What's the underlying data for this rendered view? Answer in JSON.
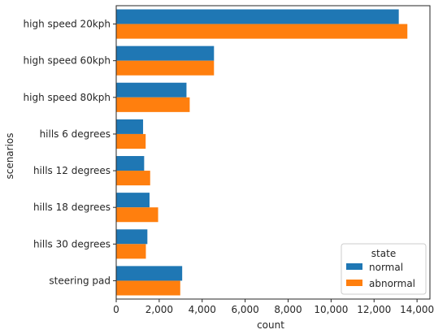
{
  "chart_data": {
    "type": "bar",
    "orientation": "horizontal",
    "categories": [
      "high speed 20kph",
      "high speed 60kph",
      "high speed 80kph",
      "hills 6 degrees",
      "hills 12 degrees",
      "hills 18 degrees",
      "hills 30 degrees",
      "steering pad"
    ],
    "series": [
      {
        "name": "normal",
        "color": "#1f77b4",
        "values": [
          13150,
          4550,
          3270,
          1250,
          1300,
          1550,
          1450,
          3070
        ]
      },
      {
        "name": "abnormal",
        "color": "#ff7f0e",
        "values": [
          13550,
          4550,
          3420,
          1370,
          1580,
          1950,
          1380,
          2980
        ]
      }
    ],
    "xlabel": "count",
    "ylabel": "scenarios",
    "xlim": [
      0,
      14600
    ],
    "xticks": [
      0,
      2000,
      4000,
      6000,
      8000,
      10000,
      12000,
      14000
    ],
    "xtick_labels": [
      "0",
      "2,000",
      "4,000",
      "6,000",
      "8,000",
      "10,000",
      "12,000",
      "14,000"
    ],
    "grid": false,
    "legend": {
      "title": "state",
      "placement": "lower-right",
      "entries": [
        "normal",
        "abnormal"
      ]
    }
  }
}
